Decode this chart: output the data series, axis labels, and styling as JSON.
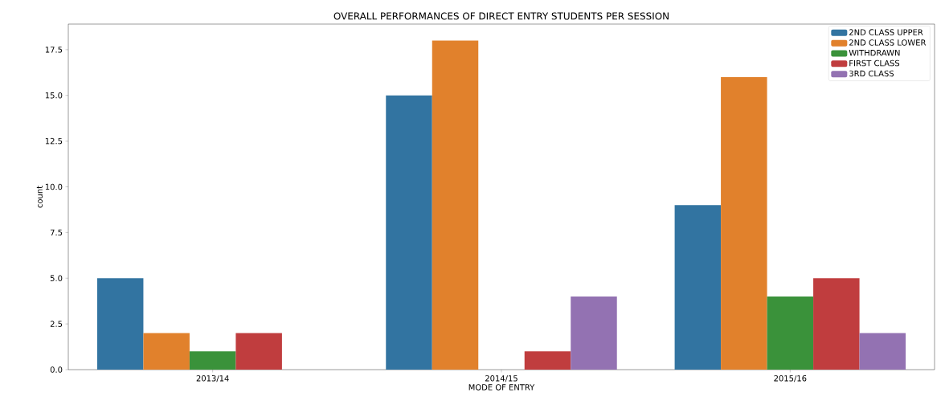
{
  "chart_data": {
    "type": "bar",
    "title": "OVERALL PERFORMANCES OF DIRECT ENTRY STUDENTS PER SESSION",
    "xlabel": "MODE OF ENTRY",
    "ylabel": "count",
    "categories": [
      "2013/14",
      "2014/15",
      "2015/16"
    ],
    "series": [
      {
        "name": "2ND CLASS UPPER",
        "color": "#3274a1",
        "values": [
          5,
          15,
          9
        ]
      },
      {
        "name": "2ND CLASS LOWER",
        "color": "#e1812c",
        "values": [
          2,
          18,
          16
        ]
      },
      {
        "name": "WITHDRAWN",
        "color": "#3a923a",
        "values": [
          1,
          null,
          4
        ]
      },
      {
        "name": "FIRST CLASS",
        "color": "#c03d3e",
        "values": [
          2,
          1,
          5
        ]
      },
      {
        "name": "3RD CLASS",
        "color": "#9372b2",
        "values": [
          null,
          4,
          2
        ]
      }
    ],
    "ylim": [
      0,
      18.9
    ],
    "yticks": [
      {
        "value": 0,
        "label": "0.0"
      },
      {
        "value": 2.5,
        "label": "2.5"
      },
      {
        "value": 5,
        "label": "5.0"
      },
      {
        "value": 7.5,
        "label": "7.5"
      },
      {
        "value": 10,
        "label": "10.0"
      },
      {
        "value": 12.5,
        "label": "12.5"
      },
      {
        "value": 15,
        "label": "15.0"
      },
      {
        "value": 17.5,
        "label": "17.5"
      }
    ],
    "grid": false,
    "legend": "top right"
  }
}
